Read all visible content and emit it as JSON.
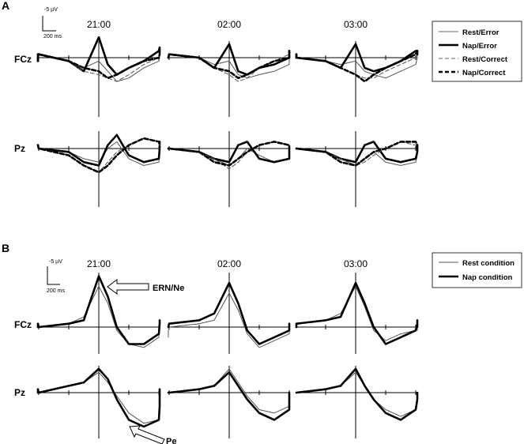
{
  "panels": [
    {
      "letter": "A",
      "scale": {
        "amplitude": "-5 µV",
        "time": "200 ms"
      },
      "times": [
        "21:00",
        "02:00",
        "03:00"
      ],
      "electrodes": [
        "FCz",
        "Pz"
      ],
      "legend": [
        "Rest/Error",
        "Nap/Error",
        "Rest/Correct",
        "Nap/Correct"
      ]
    },
    {
      "letter": "B",
      "scale": {
        "amplitude": "-5 µV",
        "time": "200 ms"
      },
      "times": [
        "21:00",
        "02:00",
        "03:00"
      ],
      "electrodes": [
        "FCz",
        "Pz"
      ],
      "legend": [
        "Rest condition",
        "Nap condition"
      ],
      "annotations": [
        "ERN/Ne",
        "Pe"
      ]
    }
  ],
  "chart_data": [
    {
      "type": "line",
      "panel": "A",
      "x_unit": "ms",
      "y_unit": "µV (negative up)",
      "x_scale_bar": 200,
      "y_scale_bar": -5,
      "x": [
        -400,
        -300,
        -200,
        -100,
        -50,
        0,
        30,
        60,
        100,
        150,
        200,
        300,
        400,
        500
      ],
      "series_styles": {
        "Rest/Error": {
          "width": 1,
          "dash": ""
        },
        "Nap/Error": {
          "width": 2.6,
          "dash": ""
        },
        "Rest/Correct": {
          "width": 1,
          "dash": "5,3"
        },
        "Nap/Correct": {
          "width": 2.6,
          "dash": "5,3"
        }
      },
      "plots": [
        {
          "electrode": "FCz",
          "time": "21:00",
          "series": [
            {
              "name": "Rest/Error",
              "values": [
                1,
                -1,
                -1,
                1,
                3,
                1,
                4,
                7,
                6,
                3,
                1,
                0,
                -2,
                -1
              ]
            },
            {
              "name": "Nap/Error",
              "values": [
                1,
                -1,
                -1,
                1,
                4,
                -6,
                2,
                5,
                3,
                1,
                -2,
                -3,
                -2,
                -2
              ]
            },
            {
              "name": "Rest/Correct",
              "values": [
                1,
                -1,
                -1,
                1,
                4,
                5,
                6,
                7,
                5,
                2,
                0,
                -1,
                -2,
                -1
              ]
            },
            {
              "name": "Nap/Correct",
              "values": [
                1,
                -1,
                -1,
                1,
                3,
                4,
                6,
                5,
                3,
                1,
                0,
                -1,
                -2,
                -2
              ]
            }
          ]
        },
        {
          "electrode": "FCz",
          "time": "02:00",
          "series": [
            {
              "name": "Rest/Error",
              "values": [
                0,
                0,
                -1,
                0,
                2,
                1,
                5,
                6,
                5,
                4,
                2,
                0,
                -1,
                -1
              ]
            },
            {
              "name": "Nap/Error",
              "values": [
                0,
                0,
                -1,
                0,
                3,
                -4,
                4,
                5,
                3,
                2,
                0,
                -2,
                -1,
                -1
              ]
            },
            {
              "name": "Rest/Correct",
              "values": [
                0,
                0,
                -1,
                0,
                3,
                5,
                7,
                6,
                3,
                1,
                -1,
                -2,
                -1,
                -1
              ]
            },
            {
              "name": "Nap/Correct",
              "values": [
                0,
                0,
                -1,
                0,
                3,
                4,
                6,
                5,
                3,
                1,
                0,
                -2,
                -1,
                -1
              ]
            }
          ]
        },
        {
          "electrode": "FCz",
          "time": "03:00",
          "series": [
            {
              "name": "Rest/Error",
              "values": [
                0,
                -1,
                0,
                1,
                2,
                1,
                4,
                5,
                6,
                4,
                2,
                0,
                -1,
                0
              ]
            },
            {
              "name": "Nap/Error",
              "values": [
                0,
                -1,
                0,
                1,
                3,
                -4,
                3,
                4,
                3,
                1,
                -2,
                -2,
                -2,
                -1
              ]
            },
            {
              "name": "Rest/Correct",
              "values": [
                0,
                -1,
                0,
                1,
                3,
                5,
                6,
                6,
                4,
                2,
                0,
                -1,
                -1,
                0
              ]
            },
            {
              "name": "Nap/Correct",
              "values": [
                0,
                -1,
                0,
                1,
                3,
                5,
                7,
                5,
                3,
                1,
                -1,
                -2,
                -1,
                -1
              ]
            }
          ]
        },
        {
          "electrode": "Pz",
          "time": "21:00",
          "series": [
            {
              "name": "Rest/Error",
              "values": [
                0,
                -1,
                0,
                1,
                3,
                4,
                0,
                -2,
                3,
                5,
                4,
                2,
                0,
                -1
              ]
            },
            {
              "name": "Nap/Error",
              "values": [
                -1,
                -1,
                0,
                1,
                4,
                5,
                -1,
                -4,
                2,
                4,
                3,
                0,
                -2,
                -1
              ]
            },
            {
              "name": "Rest/Correct",
              "values": [
                0,
                -1,
                0,
                2,
                5,
                7,
                4,
                1,
                -1,
                -3,
                -2,
                -1,
                -1,
                0
              ]
            },
            {
              "name": "Nap/Correct",
              "values": [
                -1,
                -1,
                0,
                2,
                5,
                7,
                5,
                2,
                -1,
                -3,
                -2,
                -1,
                -1,
                -1
              ]
            }
          ]
        },
        {
          "electrode": "Pz",
          "time": "02:00",
          "series": [
            {
              "name": "Rest/Error",
              "values": [
                0,
                0,
                0,
                1,
                3,
                5,
                3,
                0,
                2,
                4,
                3,
                1,
                0,
                0
              ]
            },
            {
              "name": "Nap/Error",
              "values": [
                0,
                0,
                0,
                1,
                3,
                4,
                -1,
                -2,
                3,
                4,
                3,
                1,
                1,
                0
              ]
            },
            {
              "name": "Rest/Correct",
              "values": [
                0,
                0,
                0,
                1,
                3,
                6,
                4,
                1,
                -1,
                -2,
                -1,
                -1,
                0,
                0
              ]
            },
            {
              "name": "Nap/Correct",
              "values": [
                0,
                0,
                0,
                1,
                4,
                5,
                3,
                1,
                -1,
                -2,
                -1,
                0,
                0,
                0
              ]
            }
          ]
        },
        {
          "electrode": "Pz",
          "time": "03:00",
          "series": [
            {
              "name": "Rest/Error",
              "values": [
                0,
                0,
                0,
                1,
                3,
                5,
                3,
                1,
                4,
                5,
                4,
                2,
                1,
                0
              ]
            },
            {
              "name": "Nap/Error",
              "values": [
                0,
                0,
                0,
                1,
                3,
                4,
                -1,
                -2,
                3,
                4,
                3,
                1,
                0,
                -1
              ]
            },
            {
              "name": "Rest/Correct",
              "values": [
                0,
                0,
                0,
                1,
                3,
                5,
                4,
                2,
                0,
                -2,
                -1,
                0,
                0,
                0
              ]
            },
            {
              "name": "Nap/Correct",
              "values": [
                0,
                0,
                0,
                1,
                4,
                5,
                3,
                1,
                0,
                -2,
                -2,
                -1,
                0,
                -1
              ]
            }
          ]
        }
      ]
    },
    {
      "type": "line",
      "panel": "B",
      "x_unit": "ms",
      "y_unit": "µV (negative up)",
      "x_scale_bar": 200,
      "y_scale_bar": -5,
      "x": [
        -400,
        -300,
        -200,
        -100,
        -50,
        0,
        30,
        60,
        100,
        150,
        200,
        300,
        400,
        500
      ],
      "series_styles": {
        "Rest condition": {
          "width": 1,
          "dash": ""
        },
        "Nap condition": {
          "width": 2.6,
          "dash": ""
        }
      },
      "plots": [
        {
          "electrode": "FCz",
          "time": "21:00",
          "series": [
            {
              "name": "Rest condition",
              "values": [
                0,
                -1,
                0,
                -1,
                -3,
                -12,
                -7,
                1,
                5,
                6,
                3,
                0,
                -1,
                -2
              ]
            },
            {
              "name": "Nap condition",
              "values": [
                0,
                -1,
                0,
                -1,
                -2,
                -15,
                -9,
                0,
                5,
                5,
                2,
                -1,
                -2,
                -1
              ]
            }
          ]
        },
        {
          "electrode": "FCz",
          "time": "02:00",
          "series": [
            {
              "name": "Rest condition",
              "values": [
                3,
                1,
                0,
                -1,
                -2,
                -10,
                -5,
                2,
                6,
                4,
                2,
                0,
                -1,
                0
              ]
            },
            {
              "name": "Nap condition",
              "values": [
                0,
                0,
                -1,
                -2,
                -4,
                -13,
                -7,
                1,
                5,
                3,
                1,
                0,
                -1,
                -1
              ]
            }
          ]
        },
        {
          "electrode": "FCz",
          "time": "03:00",
          "series": [
            {
              "name": "Rest condition",
              "values": [
                0,
                0,
                -1,
                -2,
                -4,
                -12,
                -6,
                1,
                4,
                2,
                1,
                0,
                -1,
                1
              ]
            },
            {
              "name": "Nap condition",
              "values": [
                0,
                0,
                -1,
                -2,
                -3,
                -13,
                -7,
                0,
                5,
                3,
                1,
                -1,
                -2,
                0
              ]
            }
          ]
        },
        {
          "electrode": "Pz",
          "time": "21:00",
          "series": [
            {
              "name": "Rest condition",
              "values": [
                -1,
                0,
                0,
                -2,
                -3,
                -6,
                -3,
                1,
                6,
                9,
                8,
                4,
                1,
                0
              ]
            },
            {
              "name": "Nap condition",
              "values": [
                0,
                -1,
                0,
                -2,
                -3,
                -7,
                -4,
                2,
                8,
                10,
                8,
                4,
                0,
                -1
              ]
            }
          ]
        },
        {
          "electrode": "Pz",
          "time": "02:00",
          "series": [
            {
              "name": "Rest condition",
              "values": [
                0,
                0,
                0,
                -1,
                -2,
                -7,
                -3,
                1,
                5,
                6,
                4,
                2,
                1,
                0
              ]
            },
            {
              "name": "Nap condition",
              "values": [
                0,
                0,
                0,
                -1,
                -2,
                -6,
                -2,
                2,
                6,
                8,
                5,
                2,
                0,
                0
              ]
            }
          ]
        },
        {
          "electrode": "Pz",
          "time": "03:00",
          "series": [
            {
              "name": "Rest condition",
              "values": [
                0,
                0,
                0,
                -1,
                -2,
                -6,
                -2,
                2,
                5,
                7,
                5,
                3,
                2,
                0
              ]
            },
            {
              "name": "Nap condition",
              "values": [
                0,
                0,
                0,
                -1,
                -2,
                -7,
                -2,
                2,
                6,
                8,
                5,
                2,
                0,
                0
              ]
            }
          ]
        }
      ]
    }
  ]
}
